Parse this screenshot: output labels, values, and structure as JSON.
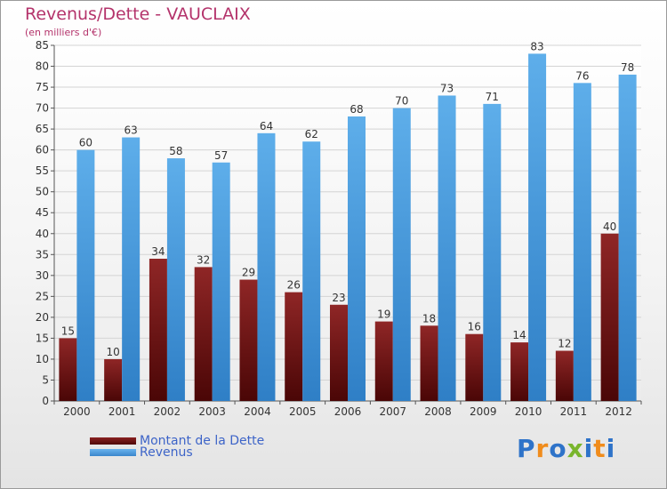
{
  "chart_data": {
    "type": "bar",
    "title": "Revenus/Dette - VAUCLAIX",
    "subtitle": "(en milliers d'€)",
    "categories": [
      "2000",
      "2001",
      "2002",
      "2003",
      "2004",
      "2005",
      "2006",
      "2007",
      "2008",
      "2009",
      "2010",
      "2011",
      "2012"
    ],
    "series": [
      {
        "name": "Montant de la Dette",
        "color": "#7a1414",
        "values": [
          15,
          10,
          34,
          32,
          29,
          26,
          23,
          19,
          18,
          16,
          14,
          12,
          40
        ]
      },
      {
        "name": "Revenus",
        "color": "#4a9fe0",
        "values": [
          60,
          63,
          58,
          57,
          64,
          62,
          68,
          70,
          73,
          71,
          83,
          76,
          78
        ]
      }
    ],
    "ylim": [
      0,
      85
    ],
    "yticks": [
      0,
      5,
      10,
      15,
      20,
      25,
      30,
      35,
      40,
      45,
      50,
      55,
      60,
      65,
      70,
      75,
      80,
      85
    ],
    "grid": true,
    "legend_position": "bottom-left"
  },
  "logo": {
    "text": "Proxiti",
    "letters": [
      {
        "ch": "P",
        "color": "#2e73c9"
      },
      {
        "ch": "r",
        "color": "#f08c1c"
      },
      {
        "ch": "o",
        "color": "#2e73c9"
      },
      {
        "ch": "x",
        "color": "#79b52c"
      },
      {
        "ch": "i",
        "color": "#2e73c9"
      },
      {
        "ch": "t",
        "color": "#f08c1c"
      },
      {
        "ch": "i",
        "color": "#2e73c9"
      }
    ]
  }
}
